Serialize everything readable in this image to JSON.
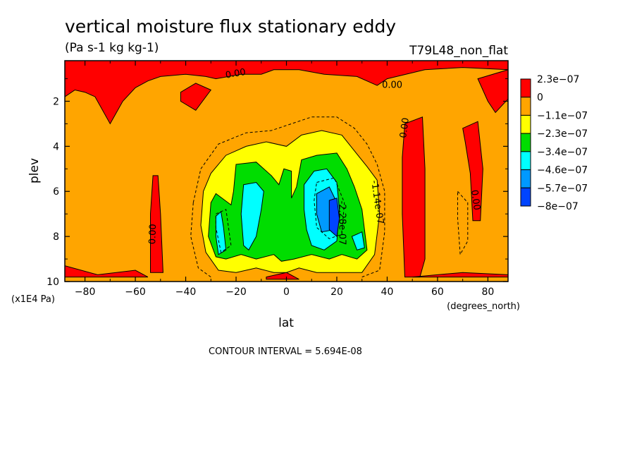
{
  "chart_data": {
    "type": "heatmap",
    "title": "vertical moisture flux stationary eddy",
    "units": "(Pa s-1 kg kg-1)",
    "dataset": "T79L48_non_flat",
    "xlabel": "lat",
    "ylabel": "plev",
    "x_units": "(degrees_north)",
    "y_units": "(x1E4 Pa)",
    "xlim": [
      -88,
      88
    ],
    "ylim": [
      10,
      0.2
    ],
    "x_ticks": [
      -80,
      -60,
      -40,
      -20,
      0,
      20,
      40,
      60,
      80
    ],
    "y_ticks": [
      2,
      4,
      6,
      8,
      10
    ],
    "contour_interval_text": "CONTOUR INTERVAL = 5.694E-08",
    "contour_labels": [
      {
        "text": "0.00",
        "lat": -20,
        "plev": 0.9,
        "angle": -10
      },
      {
        "text": "0.00",
        "lat": 42,
        "plev": 1.4,
        "angle": 0
      },
      {
        "text": "0.00",
        "lat": 48,
        "plev": 3.2,
        "angle": -82
      },
      {
        "text": "0.00",
        "lat": 74,
        "plev": 6.4,
        "angle": 82
      },
      {
        "text": "0.00",
        "lat": -52,
        "plev": 7.9,
        "angle": -88
      },
      {
        "text": "-1.14e-07",
        "lat": 35,
        "plev": 6.5,
        "angle": 82
      },
      {
        "text": "-2.28e-07",
        "lat": 21,
        "plev": 7.4,
        "angle": 90
      }
    ],
    "legend": {
      "placement": "right",
      "labels": [
        "2.3e-07",
        "0",
        "-1.1e-07",
        "-2.3e-07",
        "-3.4e-07",
        "-4.6e-07",
        "-5.7e-07",
        "-8e-07"
      ],
      "colors": [
        "#ff0000",
        "#ffa500",
        "#ffff00",
        "#00dd00",
        "#00ffff",
        "#0099ff",
        "#0044ff"
      ]
    },
    "background_color": "#ffa500",
    "regions": [
      {
        "color": "#ff0000",
        "points": [
          [
            -88,
            0.2
          ],
          [
            88,
            0.2
          ],
          [
            88,
            0.6
          ],
          [
            70,
            0.5
          ],
          [
            55,
            0.6
          ],
          [
            40,
            1.0
          ],
          [
            36,
            1.3
          ],
          [
            28,
            0.9
          ],
          [
            15,
            0.8
          ],
          [
            5,
            0.6
          ],
          [
            -5,
            0.6
          ],
          [
            -10,
            0.8
          ],
          [
            -18,
            0.8
          ],
          [
            -28,
            1.0
          ],
          [
            -32,
            0.9
          ],
          [
            -40,
            0.8
          ],
          [
            -50,
            0.9
          ],
          [
            -55,
            1.1
          ],
          [
            -60,
            1.4
          ],
          [
            -65,
            2.0
          ],
          [
            -70,
            3.0
          ],
          [
            -76,
            1.8
          ],
          [
            -80,
            1.6
          ],
          [
            -84,
            1.5
          ],
          [
            -88,
            1.8
          ]
        ]
      },
      {
        "color": "#ff0000",
        "points": [
          [
            -42,
            1.6
          ],
          [
            -36,
            1.2
          ],
          [
            -30,
            1.5
          ],
          [
            -36,
            2.4
          ],
          [
            -42,
            2.0
          ]
        ]
      },
      {
        "color": "#ff0000",
        "points": [
          [
            47,
            3.0
          ],
          [
            54,
            2.7
          ],
          [
            55,
            5.0
          ],
          [
            55,
            9.0
          ],
          [
            53,
            9.8
          ],
          [
            47,
            9.8
          ],
          [
            46,
            7.0
          ],
          [
            46,
            4.5
          ]
        ]
      },
      {
        "color": "#ff0000",
        "points": [
          [
            70,
            3.2
          ],
          [
            76,
            2.9
          ],
          [
            78,
            5.0
          ],
          [
            77,
            7.3
          ],
          [
            74,
            7.3
          ],
          [
            73,
            5.2
          ],
          [
            71,
            3.8
          ]
        ]
      },
      {
        "color": "#ff0000",
        "points": [
          [
            76,
            1.0
          ],
          [
            88,
            0.6
          ],
          [
            88,
            1.9
          ],
          [
            83,
            2.5
          ],
          [
            80,
            2.0
          ]
        ]
      },
      {
        "color": "#ff0000",
        "points": [
          [
            -53,
            5.3
          ],
          [
            -51,
            5.3
          ],
          [
            -50,
            7.0
          ],
          [
            -49,
            9.6
          ],
          [
            -54,
            9.6
          ],
          [
            -54,
            7.0
          ]
        ]
      },
      {
        "color": "#ff0000",
        "points": [
          [
            -88,
            9.3
          ],
          [
            -75,
            9.7
          ],
          [
            -60,
            9.5
          ],
          [
            -55,
            9.8
          ],
          [
            -88,
            9.8
          ]
        ]
      },
      {
        "color": "#ff0000",
        "points": [
          [
            -8,
            9.8
          ],
          [
            0,
            9.6
          ],
          [
            5,
            9.9
          ],
          [
            -8,
            9.9
          ]
        ]
      },
      {
        "color": "#ff0000",
        "points": [
          [
            50,
            9.8
          ],
          [
            70,
            9.6
          ],
          [
            88,
            9.7
          ],
          [
            88,
            9.8
          ]
        ]
      },
      {
        "color": "#ffff00",
        "points": [
          [
            -33,
            6.0
          ],
          [
            -30,
            5.2
          ],
          [
            -24,
            4.4
          ],
          [
            -16,
            4.0
          ],
          [
            -8,
            3.8
          ],
          [
            0,
            4.0
          ],
          [
            6,
            3.5
          ],
          [
            14,
            3.3
          ],
          [
            22,
            3.5
          ],
          [
            27,
            4.2
          ],
          [
            32,
            4.9
          ],
          [
            36,
            5.5
          ],
          [
            37,
            7.0
          ],
          [
            35,
            8.8
          ],
          [
            30,
            9.6
          ],
          [
            22,
            9.6
          ],
          [
            12,
            9.6
          ],
          [
            5,
            9.4
          ],
          [
            0,
            9.6
          ],
          [
            -5,
            9.6
          ],
          [
            -12,
            9.4
          ],
          [
            -20,
            9.6
          ],
          [
            -27,
            9.5
          ],
          [
            -32,
            8.7
          ],
          [
            -34,
            7.5
          ]
        ]
      },
      {
        "color": "#00dd00",
        "points": [
          [
            -30,
            6.5
          ],
          [
            -28,
            6.1
          ],
          [
            -22,
            6.6
          ],
          [
            -21,
            6.0
          ],
          [
            -20,
            4.8
          ],
          [
            -12,
            4.7
          ],
          [
            -6,
            5.3
          ],
          [
            -3,
            5.7
          ],
          [
            -1,
            5.0
          ],
          [
            2,
            5.1
          ],
          [
            2,
            6.3
          ],
          [
            4,
            5.8
          ],
          [
            6,
            4.6
          ],
          [
            12,
            4.4
          ],
          [
            20,
            4.3
          ],
          [
            24,
            5.0
          ],
          [
            27,
            5.8
          ],
          [
            30,
            6.8
          ],
          [
            32,
            8.6
          ],
          [
            28,
            9.0
          ],
          [
            22,
            8.8
          ],
          [
            17,
            9.0
          ],
          [
            10,
            8.8
          ],
          [
            3,
            9.0
          ],
          [
            -2,
            9.1
          ],
          [
            -5,
            8.8
          ],
          [
            -12,
            9.0
          ],
          [
            -18,
            8.8
          ],
          [
            -24,
            9.0
          ],
          [
            -28,
            8.9
          ],
          [
            -31,
            8.0
          ]
        ]
      },
      {
        "color": "#00ffff",
        "points": [
          [
            -28,
            7.1
          ],
          [
            -26,
            6.9
          ],
          [
            -25,
            7.6
          ],
          [
            -24,
            8.6
          ],
          [
            -27,
            8.8
          ],
          [
            -28,
            8.0
          ]
        ]
      },
      {
        "color": "#00ffff",
        "points": [
          [
            -17,
            5.7
          ],
          [
            -12,
            5.6
          ],
          [
            -9,
            6.0
          ],
          [
            -10,
            6.8
          ],
          [
            -12,
            8.0
          ],
          [
            -15,
            8.6
          ],
          [
            -17,
            8.4
          ],
          [
            -18,
            7.0
          ]
        ]
      },
      {
        "color": "#00ffff",
        "points": [
          [
            7,
            5.7
          ],
          [
            11,
            5.1
          ],
          [
            16,
            5.0
          ],
          [
            20,
            5.6
          ],
          [
            21,
            6.8
          ],
          [
            20,
            8.2
          ],
          [
            15,
            8.6
          ],
          [
            10,
            8.4
          ],
          [
            8,
            7.7
          ],
          [
            7,
            6.8
          ]
        ]
      },
      {
        "color": "#00ffff",
        "points": [
          [
            26,
            8.0
          ],
          [
            30,
            7.8
          ],
          [
            31,
            8.5
          ],
          [
            28,
            8.6
          ]
        ]
      },
      {
        "color": "#0099ff",
        "points": [
          [
            12,
            6.1
          ],
          [
            17,
            5.8
          ],
          [
            20,
            6.5
          ],
          [
            19,
            7.7
          ],
          [
            14,
            7.8
          ],
          [
            12,
            7.0
          ]
        ]
      },
      {
        "color": "#0044ff",
        "points": [
          [
            17,
            6.4
          ],
          [
            20,
            6.3
          ],
          [
            21,
            7.2
          ],
          [
            20,
            8.0
          ],
          [
            17,
            7.7
          ]
        ]
      }
    ],
    "contours_dashed": [
      [
        [
          -37,
          6.5
        ],
        [
          -34,
          5.0
        ],
        [
          -27,
          3.9
        ],
        [
          -16,
          3.4
        ],
        [
          -6,
          3.3
        ],
        [
          2,
          3.0
        ],
        [
          10,
          2.7
        ],
        [
          20,
          2.7
        ],
        [
          27,
          3.2
        ],
        [
          32,
          3.9
        ],
        [
          36,
          4.8
        ],
        [
          39,
          6.0
        ],
        [
          39,
          7.8
        ],
        [
          37,
          9.5
        ],
        [
          30,
          9.8
        ]
      ],
      [
        [
          -37,
          6.5
        ],
        [
          -38,
          8.0
        ],
        [
          -35,
          9.4
        ],
        [
          -30,
          9.8
        ]
      ],
      [
        [
          -28,
          7.0
        ],
        [
          -24,
          6.8
        ],
        [
          -22,
          8.4
        ],
        [
          -26,
          8.7
        ],
        [
          -28,
          7.6
        ],
        [
          -28,
          7.0
        ]
      ],
      [
        [
          12,
          5.6
        ],
        [
          19,
          5.4
        ],
        [
          23,
          6.5
        ],
        [
          22,
          7.9
        ],
        [
          17,
          8.1
        ],
        [
          12,
          7.6
        ],
        [
          11,
          6.4
        ],
        [
          12,
          5.6
        ]
      ],
      [
        [
          68,
          6.0
        ],
        [
          72,
          6.5
        ],
        [
          72,
          8.2
        ],
        [
          69,
          8.8
        ],
        [
          68,
          7.2
        ],
        [
          68,
          6.0
        ]
      ]
    ]
  }
}
